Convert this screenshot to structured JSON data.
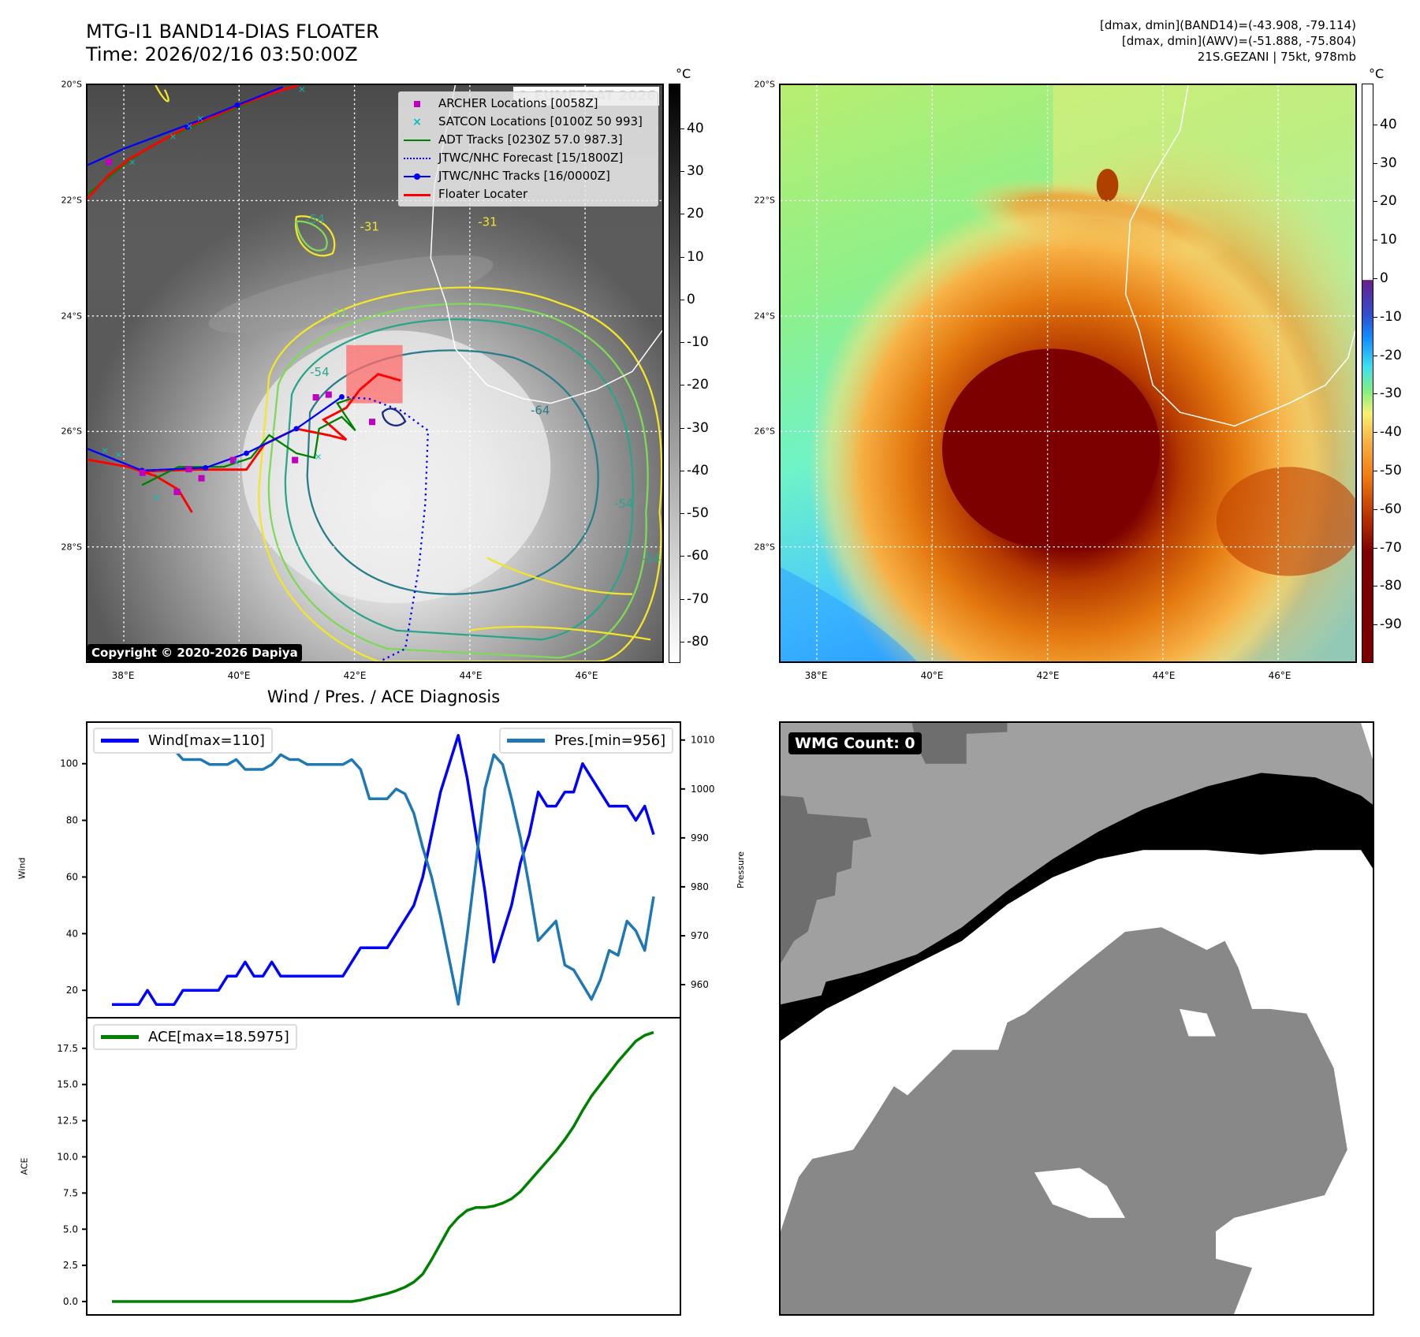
{
  "header": {
    "title": "MTG-I1 BAND14-DIAS FLOATER",
    "time": "Time: 2026/02/16 03:50:00Z",
    "stats_band14": "[dmax, dmin](BAND14)=(-43.908, -79.114)",
    "stats_awv": "[dmax, dmin](AWV)=(-51.888, -75.804)",
    "storm": "21S.GEZANI | 75kt, 978mb"
  },
  "map_axes": {
    "lat_labels": [
      "20°S",
      "22°S",
      "24°S",
      "26°S",
      "28°S"
    ],
    "lon_labels": [
      "38°E",
      "40°E",
      "42°E",
      "44°E",
      "46°E"
    ]
  },
  "ir_panel": {
    "watermark": "© EUMETSAT 2026",
    "copyright": "Copyright © 2020-2026 Dapiya",
    "contour_labels": [
      "-54",
      "-31",
      "-31",
      "-31",
      "-54",
      "-64",
      "-54",
      "-54"
    ],
    "legend": [
      {
        "label": "ARCHER Locations [0058Z]",
        "symbol": "square",
        "color": "#bf00bf"
      },
      {
        "label": "SATCON Locations [0100Z 50 993]",
        "symbol": "x",
        "color": "#00bfbf"
      },
      {
        "label": "ADT Tracks [0230Z 57.0 987.3]",
        "symbol": "line",
        "color": "#008000"
      },
      {
        "label": "JTWC/NHC Forecast [15/1800Z]",
        "symbol": "dotted",
        "color": "#0000ff"
      },
      {
        "label": "JTWC/NHC Tracks [16/0000Z]",
        "symbol": "line-dot",
        "color": "#0000ff"
      },
      {
        "label": "Floater Locater",
        "symbol": "line",
        "color": "#ff0000"
      }
    ],
    "colorbar": {
      "unit": "°C",
      "ticks": [
        40,
        30,
        20,
        10,
        0,
        -10,
        -20,
        -30,
        -40,
        -50,
        -60,
        -70,
        -80
      ]
    }
  },
  "awv_panel": {
    "colorbar": {
      "unit": "°C",
      "ticks": [
        40,
        30,
        20,
        10,
        0,
        -10,
        -20,
        -30,
        -40,
        -50,
        -60,
        -70,
        -80,
        -90
      ]
    }
  },
  "diag_title": "Wind / Pres. / ACE Diagnosis",
  "chart_data": [
    {
      "type": "line",
      "title": "Wind / Pres. / ACE Diagnosis",
      "ylabel": "Wind",
      "y2label": "Pressure",
      "ylim": [
        10.6,
        114.4
      ],
      "y2lim": [
        953.4,
        1013.5
      ],
      "yticks": [
        20,
        40,
        60,
        80,
        100
      ],
      "y2ticks": [
        960,
        970,
        980,
        990,
        1000,
        1010
      ],
      "series": [
        {
          "name": "Wind[max=110]",
          "color": "#0000ff",
          "axis": "left",
          "values": [
            15,
            15,
            15,
            15,
            20,
            15,
            15,
            15,
            20,
            20,
            20,
            20,
            20,
            25,
            25,
            30,
            25,
            25,
            30,
            25,
            25,
            25,
            25,
            25,
            25,
            25,
            25,
            30,
            35,
            35,
            35,
            35,
            40,
            45,
            50,
            60,
            75,
            90,
            100,
            110,
            95,
            75,
            55,
            30,
            40,
            50,
            65,
            75,
            90,
            85,
            85,
            90,
            90,
            100,
            95,
            90,
            85,
            85,
            85,
            80,
            85,
            75
          ]
        },
        {
          "name": "Pres.[min=956]",
          "color": "#1f77b4",
          "axis": "right",
          "values": [
            1008,
            1008,
            1010,
            1010,
            1010,
            1010,
            1010,
            1008,
            1006,
            1006,
            1006,
            1005,
            1005,
            1005,
            1006,
            1004,
            1004,
            1004,
            1005,
            1007,
            1006,
            1006,
            1005,
            1005,
            1005,
            1005,
            1005,
            1006,
            1004,
            998,
            998,
            998,
            1000,
            999,
            995,
            988,
            982,
            974,
            965,
            956,
            970,
            985,
            1000,
            1007,
            1005,
            998,
            990,
            980,
            969,
            971,
            973,
            964,
            963,
            960,
            957,
            961,
            967,
            966,
            973,
            971,
            967,
            978
          ]
        }
      ]
    },
    {
      "type": "line",
      "ylabel": "ACE",
      "ylim": [
        -0.87,
        19.56
      ],
      "yticks": [
        "0.0",
        "2.5",
        "5.0",
        "7.5",
        "10.0",
        "12.5",
        "15.0",
        "17.5"
      ],
      "series": [
        {
          "name": "ACE[max=18.5975]",
          "color": "#008000",
          "values": [
            0,
            0,
            0,
            0,
            0,
            0,
            0,
            0,
            0,
            0,
            0,
            0,
            0,
            0,
            0,
            0,
            0,
            0,
            0,
            0,
            0,
            0,
            0,
            0,
            0,
            0,
            0,
            0,
            0.1,
            0.25,
            0.4,
            0.55,
            0.75,
            1.0,
            1.35,
            1.9,
            2.9,
            4.0,
            5.1,
            5.8,
            6.3,
            6.5,
            6.5,
            6.6,
            6.8,
            7.1,
            7.6,
            8.3,
            9.0,
            9.7,
            10.4,
            11.2,
            12.1,
            13.2,
            14.2,
            15.0,
            15.8,
            16.6,
            17.3,
            18.0,
            18.4,
            18.6
          ]
        }
      ]
    }
  ],
  "wmg_panel": {
    "label": "WMG Count: 0"
  }
}
